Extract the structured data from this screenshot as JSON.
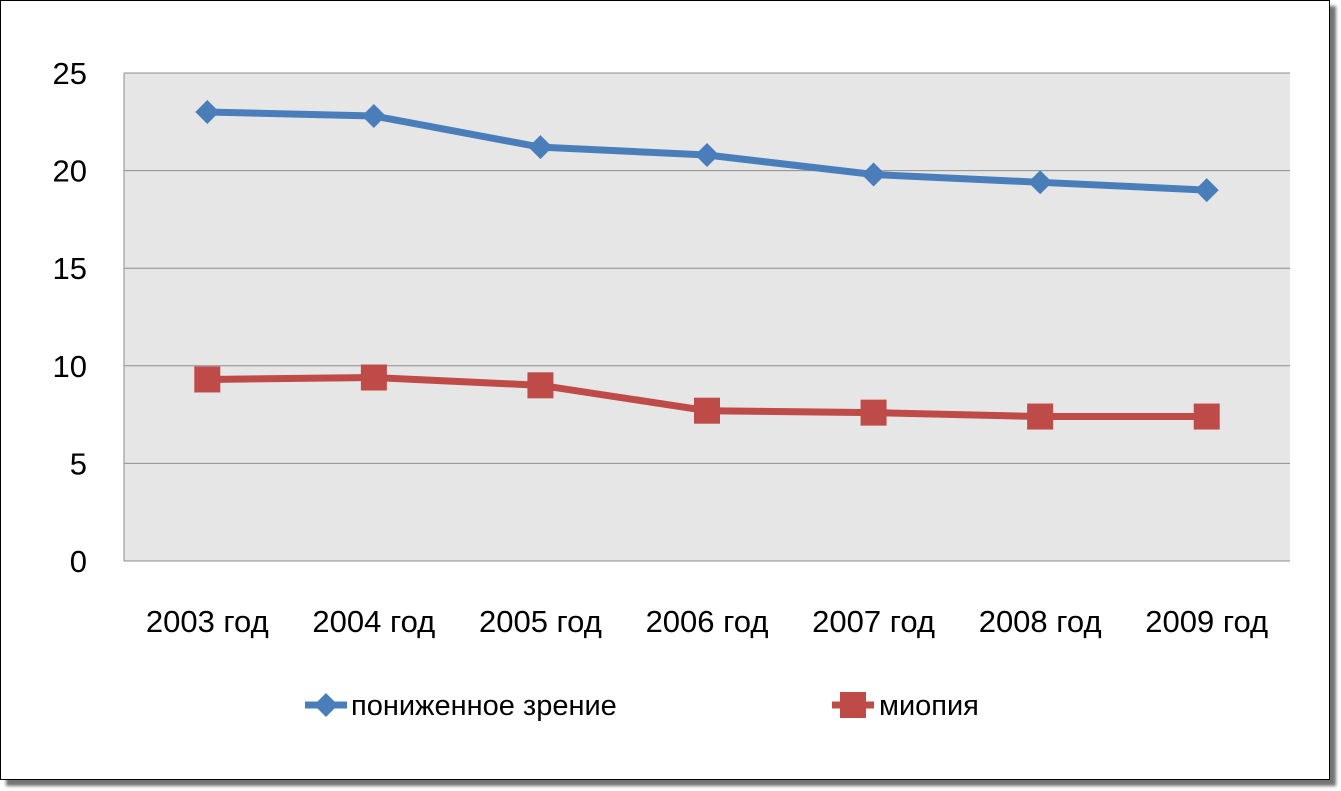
{
  "chart_data": {
    "type": "line",
    "title": "",
    "xlabel": "",
    "ylabel": "",
    "categories": [
      "2003 год",
      "2004 год",
      "2005 год",
      "2006 год",
      "2007 год",
      "2008 год",
      "2009 год"
    ],
    "ylim": [
      0,
      25
    ],
    "yticks": [
      0,
      5,
      10,
      15,
      20,
      25
    ],
    "grid": true,
    "legend_position": "bottom",
    "plot_background": "#e6e6e6",
    "series": [
      {
        "name": "пониженное зрение",
        "values": [
          23,
          22.8,
          21.2,
          20.8,
          19.8,
          19.4,
          19
        ],
        "color": "#4a7ebb",
        "marker": "diamond"
      },
      {
        "name": "миопия",
        "values": [
          9.3,
          9.4,
          9,
          7.7,
          7.6,
          7.4,
          7.4
        ],
        "color": "#be4b48",
        "marker": "square"
      }
    ]
  }
}
